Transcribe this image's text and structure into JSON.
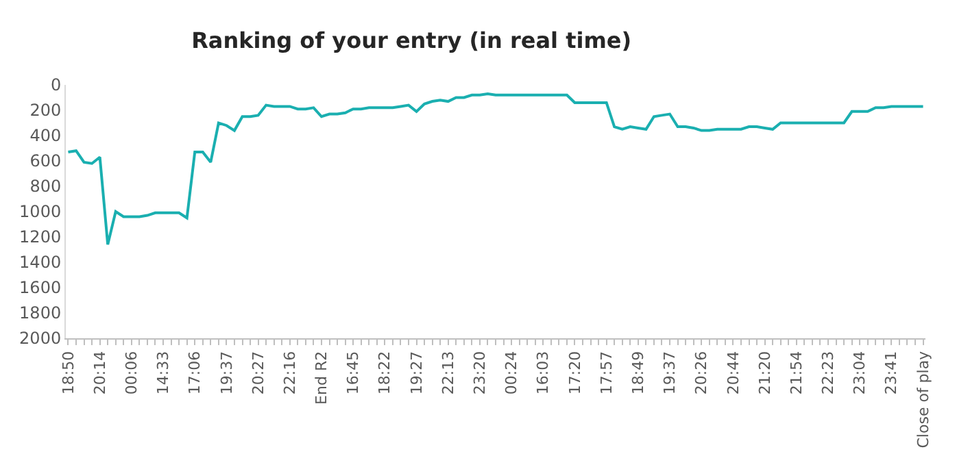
{
  "chart_data": {
    "type": "line",
    "title": "Ranking of your entry (in real time)",
    "categories": [
      "18:50",
      null,
      null,
      null,
      "20:14",
      null,
      null,
      null,
      "00:06",
      null,
      null,
      null,
      "14:33",
      null,
      null,
      null,
      "17:06",
      null,
      null,
      null,
      "19:37",
      null,
      null,
      null,
      "20:27",
      null,
      null,
      null,
      "22:16",
      null,
      null,
      null,
      "End R2",
      null,
      null,
      null,
      "16:45",
      null,
      null,
      null,
      "18:22",
      null,
      null,
      null,
      "19:27",
      null,
      null,
      null,
      "22:13",
      null,
      null,
      null,
      "23:20",
      null,
      null,
      null,
      "00:24",
      null,
      null,
      null,
      "16:03",
      null,
      null,
      null,
      "17:20",
      null,
      null,
      null,
      "17:57",
      null,
      null,
      null,
      "18:49",
      null,
      null,
      null,
      "19:37",
      null,
      null,
      null,
      "20:26",
      null,
      null,
      null,
      "20:44",
      null,
      null,
      null,
      "21:20",
      null,
      null,
      null,
      "21:54",
      null,
      null,
      null,
      "22:23",
      null,
      null,
      null,
      "23:04",
      null,
      null,
      null,
      "23:41",
      null,
      null,
      null,
      "Close of play"
    ],
    "series": [
      {
        "color": "#1aafb0",
        "values": [
          530,
          520,
          610,
          620,
          570,
          1260,
          1000,
          1040,
          1040,
          1040,
          1030,
          1010,
          1010,
          1010,
          1010,
          1050,
          530,
          530,
          610,
          300,
          320,
          360,
          250,
          250,
          240,
          160,
          170,
          170,
          170,
          190,
          190,
          180,
          250,
          230,
          230,
          220,
          190,
          190,
          180,
          180,
          180,
          180,
          170,
          160,
          210,
          150,
          130,
          120,
          130,
          100,
          100,
          80,
          80,
          70,
          80,
          80,
          80,
          80,
          80,
          80,
          80,
          80,
          80,
          80,
          140,
          140,
          140,
          140,
          140,
          330,
          350,
          330,
          340,
          350,
          250,
          240,
          230,
          330,
          330,
          340,
          360,
          360,
          350,
          350,
          350,
          350,
          330,
          330,
          340,
          350,
          300,
          300,
          300,
          300,
          300,
          300,
          300,
          300,
          300,
          210,
          210,
          210,
          180,
          180,
          170,
          170,
          170,
          170,
          170
        ]
      }
    ],
    "ylim": [
      2000,
      0
    ],
    "yticks": [
      0,
      200,
      400,
      600,
      800,
      1000,
      1200,
      1400,
      1600,
      1800,
      2000
    ],
    "marker": "none",
    "line_style": "solid"
  }
}
